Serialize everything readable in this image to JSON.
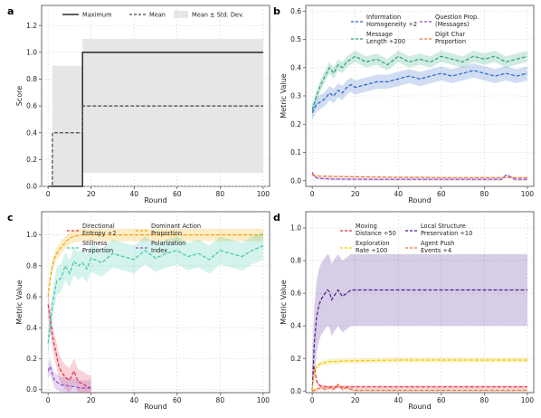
{
  "chart_data": [
    {
      "panel": "a",
      "type": "line",
      "xlabel": "Round",
      "ylabel": "Score",
      "xlim": [
        -3,
        103
      ],
      "ylim": [
        0,
        1.35
      ],
      "xticks": [
        0,
        20,
        40,
        60,
        80,
        100
      ],
      "xtick_labels": [
        "0",
        "20",
        "40",
        "60",
        "80",
        "100"
      ],
      "yticks": [
        0.0,
        0.2,
        0.4,
        0.6,
        0.8,
        1.0,
        1.2
      ],
      "ytick_labels": [
        "0.0",
        "0.2",
        "0.4",
        "0.6",
        "0.8",
        "1.0",
        "1.2"
      ],
      "legend_position": "top",
      "series": [
        {
          "name": "Maximum",
          "style": "solid",
          "color": "#000000",
          "x": [
            0,
            16,
            16,
            100
          ],
          "y": [
            0,
            0,
            1.0,
            1.0
          ]
        },
        {
          "name": "Mean",
          "style": "dashed",
          "color": "#444444",
          "x": [
            0,
            2,
            2,
            16,
            16,
            100
          ],
          "y": [
            0,
            0,
            0.4,
            0.4,
            0.6,
            0.6
          ]
        },
        {
          "name": "Mean ± Std. Dev.",
          "style": "band",
          "color": "#e6e6e6",
          "x": [
            0,
            2,
            2,
            16,
            16,
            100
          ],
          "lower": [
            0,
            0,
            0,
            0,
            0.1,
            0.1
          ],
          "upper": [
            0,
            0,
            0.9,
            0.9,
            1.1,
            1.1
          ]
        }
      ]
    },
    {
      "panel": "b",
      "type": "line",
      "xlabel": "Round",
      "ylabel": "Metric Value",
      "xlim": [
        -3,
        103
      ],
      "ylim": [
        -0.02,
        0.62
      ],
      "xticks": [
        0,
        20,
        40,
        60,
        80,
        100
      ],
      "xtick_labels": [
        "0",
        "20",
        "40",
        "60",
        "80",
        "100"
      ],
      "yticks": [
        0.0,
        0.1,
        0.2,
        0.3,
        0.4,
        0.5,
        0.6
      ],
      "ytick_labels": [
        "0.0",
        "0.1",
        "0.2",
        "0.3",
        "0.4",
        "0.5",
        "0.6"
      ],
      "legend_position": "top",
      "series": [
        {
          "name": "Information Homogeneity ÷2",
          "color": "#2a64c8",
          "x": [
            0,
            2,
            4,
            6,
            8,
            10,
            12,
            14,
            16,
            18,
            20,
            25,
            30,
            35,
            40,
            45,
            50,
            55,
            60,
            65,
            70,
            75,
            80,
            85,
            90,
            95,
            100
          ],
          "y": [
            0.24,
            0.27,
            0.28,
            0.29,
            0.31,
            0.3,
            0.32,
            0.31,
            0.33,
            0.34,
            0.33,
            0.34,
            0.35,
            0.35,
            0.36,
            0.37,
            0.36,
            0.37,
            0.38,
            0.37,
            0.38,
            0.39,
            0.38,
            0.37,
            0.38,
            0.37,
            0.38
          ]
        },
        {
          "name": "Message Length ÷200",
          "color": "#2aa27a",
          "x": [
            0,
            2,
            4,
            6,
            8,
            10,
            12,
            14,
            16,
            18,
            20,
            25,
            30,
            35,
            40,
            45,
            50,
            55,
            60,
            65,
            70,
            75,
            80,
            85,
            90,
            95,
            100
          ],
          "y": [
            0.25,
            0.3,
            0.34,
            0.37,
            0.4,
            0.38,
            0.41,
            0.4,
            0.42,
            0.43,
            0.44,
            0.42,
            0.43,
            0.41,
            0.44,
            0.42,
            0.43,
            0.42,
            0.44,
            0.43,
            0.42,
            0.44,
            0.43,
            0.44,
            0.42,
            0.43,
            0.44
          ]
        },
        {
          "name": "Question Prop. (Messages)",
          "color": "#9050c8",
          "x": [
            0,
            1,
            2,
            4,
            10,
            30,
            50,
            70,
            88,
            90,
            92,
            94,
            96,
            100
          ],
          "y": [
            0.03,
            0.015,
            0.01,
            0.008,
            0.006,
            0.005,
            0.005,
            0.005,
            0.005,
            0.02,
            0.015,
            0.005,
            0.005,
            0.005
          ]
        },
        {
          "name": "Digit Char Proportion",
          "color": "#e8783a",
          "x": [
            0,
            2,
            5,
            10,
            20,
            30,
            40,
            50,
            60,
            70,
            80,
            90,
            100
          ],
          "y": [
            0.02,
            0.017,
            0.016,
            0.015,
            0.014,
            0.013,
            0.012,
            0.012,
            0.011,
            0.011,
            0.011,
            0.011,
            0.011
          ]
        }
      ]
    },
    {
      "panel": "c",
      "type": "line",
      "xlabel": "Round",
      "ylabel": "Metric Value",
      "xlim": [
        -3,
        103
      ],
      "ylim": [
        -0.02,
        1.15
      ],
      "xticks": [
        0,
        20,
        40,
        60,
        80,
        100
      ],
      "xtick_labels": [
        "0",
        "20",
        "40",
        "60",
        "80",
        "100"
      ],
      "yticks": [
        0.0,
        0.2,
        0.4,
        0.6,
        0.8,
        1.0
      ],
      "ytick_labels": [
        "0.0",
        "0.2",
        "0.4",
        "0.6",
        "0.8",
        "1.0"
      ],
      "legend_position": "top",
      "series": [
        {
          "name": "Directional Entropy ÷2",
          "color": "#e0304a",
          "x": [
            0,
            1,
            2,
            3,
            4,
            5,
            6,
            8,
            10,
            12,
            14,
            16,
            18,
            20
          ],
          "y": [
            0.55,
            0.45,
            0.35,
            0.28,
            0.22,
            0.15,
            0.12,
            0.08,
            0.06,
            0.12,
            0.05,
            0.04,
            0.02,
            0.01
          ]
        },
        {
          "name": "Dominant Action Proportion",
          "color": "#f0a800",
          "x": [
            0,
            1,
            2,
            3,
            4,
            5,
            6,
            8,
            10,
            12,
            15,
            20,
            40,
            60,
            80,
            100
          ],
          "y": [
            0.6,
            0.72,
            0.8,
            0.85,
            0.88,
            0.9,
            0.92,
            0.95,
            0.98,
            0.99,
            1.0,
            1.0,
            1.0,
            1.0,
            1.0,
            1.0
          ]
        },
        {
          "name": "Stillness Proportion",
          "color": "#3cc8a8",
          "x": [
            0,
            2,
            4,
            6,
            8,
            10,
            12,
            14,
            16,
            18,
            20,
            25,
            30,
            35,
            40,
            45,
            50,
            55,
            60,
            65,
            70,
            75,
            80,
            85,
            90,
            95,
            100
          ],
          "y": [
            0.3,
            0.55,
            0.7,
            0.72,
            0.8,
            0.75,
            0.83,
            0.8,
            0.82,
            0.78,
            0.85,
            0.82,
            0.88,
            0.86,
            0.84,
            0.9,
            0.85,
            0.88,
            0.9,
            0.86,
            0.88,
            0.84,
            0.9,
            0.88,
            0.86,
            0.9,
            0.93
          ]
        },
        {
          "name": "Polarization Index",
          "color": "#9050c8",
          "x": [
            0,
            1,
            2,
            3,
            4,
            5,
            6,
            8,
            10,
            12,
            15,
            20
          ],
          "y": [
            0.12,
            0.15,
            0.1,
            0.06,
            0.05,
            0.04,
            0.03,
            0.03,
            0.02,
            0.02,
            0.01,
            0.01
          ]
        }
      ]
    },
    {
      "panel": "d",
      "type": "line",
      "xlabel": "Round",
      "ylabel": "Metric Value",
      "xlim": [
        -3,
        103
      ],
      "ylim": [
        -0.01,
        1.1
      ],
      "xticks": [
        0,
        20,
        40,
        60,
        80,
        100
      ],
      "xtick_labels": [
        "0",
        "20",
        "40",
        "60",
        "80",
        "100"
      ],
      "yticks": [
        0.0,
        0.2,
        0.4,
        0.6,
        0.8,
        1.0
      ],
      "ytick_labels": [
        "0.0",
        "0.2",
        "0.4",
        "0.6",
        "0.8",
        "1.0"
      ],
      "legend_position": "top",
      "series": [
        {
          "name": "Moving Distance ÷50",
          "color": "#e0304a",
          "x": [
            0,
            1,
            2,
            3,
            4,
            5,
            6,
            8,
            10,
            15,
            20,
            40,
            60,
            80,
            100
          ],
          "y": [
            0.0,
            0.15,
            0.06,
            0.04,
            0.03,
            0.03,
            0.025,
            0.025,
            0.025,
            0.025,
            0.025,
            0.025,
            0.025,
            0.025,
            0.025
          ]
        },
        {
          "name": "Local Structure Preservation ÷10",
          "color": "#4a1c8c",
          "x": [
            0,
            1,
            2,
            3,
            4,
            5,
            6,
            7,
            8,
            9,
            10,
            12,
            14,
            16,
            18,
            20,
            40,
            60,
            80,
            100
          ],
          "y": [
            0.0,
            0.3,
            0.45,
            0.52,
            0.56,
            0.58,
            0.6,
            0.62,
            0.61,
            0.56,
            0.58,
            0.62,
            0.58,
            0.6,
            0.62,
            0.62,
            0.62,
            0.62,
            0.62,
            0.62
          ]
        },
        {
          "name": "Exploration Rate ÷100",
          "color": "#f0c800",
          "x": [
            0,
            1,
            2,
            3,
            4,
            6,
            8,
            10,
            15,
            20,
            40,
            60,
            80,
            100
          ],
          "y": [
            0.0,
            0.12,
            0.15,
            0.16,
            0.17,
            0.175,
            0.18,
            0.18,
            0.185,
            0.185,
            0.19,
            0.19,
            0.19,
            0.19
          ]
        },
        {
          "name": "Agent Push Events ÷4",
          "color": "#f07030",
          "x": [
            0,
            2,
            4,
            6,
            8,
            10,
            12,
            14,
            16,
            18,
            20,
            30,
            50,
            70,
            100
          ],
          "y": [
            0.0,
            0.01,
            0.02,
            0.01,
            0.02,
            0.01,
            0.04,
            0.01,
            0.02,
            0.01,
            0.005,
            0.005,
            0.005,
            0.005,
            0.005
          ]
        }
      ]
    }
  ]
}
